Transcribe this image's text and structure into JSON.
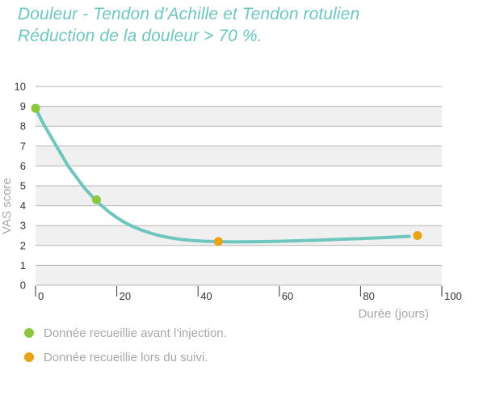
{
  "title_line1": "Douleur - Tendon d’Achille et Tendon rotulien",
  "title_line2": "Réduction de la douleur > 70 %.",
  "colors": {
    "title": "#6fc6bf",
    "curve": "#6fc6bf",
    "before": "#8dc63f",
    "followup": "#e8a317",
    "band": "#f0f0f0",
    "grid": "#b5b5b5",
    "text": "#333333",
    "label": "#a8a8a8"
  },
  "legend": [
    {
      "label": "Donnée recueillie avant l’injection.",
      "color_key": "before"
    },
    {
      "label": "Donnée recueillie lors du suivi.",
      "color_key": "followup"
    }
  ],
  "chart_data": {
    "type": "line",
    "xlabel": "Durée (jours)",
    "ylabel": "VAS score",
    "xlim": [
      0,
      100
    ],
    "ylim": [
      0,
      10
    ],
    "x_ticks": [
      0,
      20,
      40,
      60,
      80,
      100
    ],
    "y_ticks": [
      0,
      1,
      2,
      3,
      4,
      5,
      6,
      7,
      8,
      9,
      10
    ],
    "grid": true,
    "legend_position": "bottom-left",
    "series": [
      {
        "type": "line",
        "x": [
          0,
          2,
          4,
          6,
          8,
          10,
          12,
          14,
          16,
          18,
          20,
          22,
          24,
          26,
          28,
          30,
          32,
          34,
          36,
          38,
          40,
          42,
          44,
          46,
          48,
          50,
          55,
          60,
          65,
          70,
          75,
          80,
          85,
          90,
          92
        ],
        "y": [
          8.9,
          8.1,
          7.4,
          6.7,
          6.0,
          5.45,
          4.9,
          4.45,
          4.05,
          3.7,
          3.4,
          3.15,
          2.95,
          2.78,
          2.64,
          2.52,
          2.43,
          2.36,
          2.3,
          2.26,
          2.23,
          2.21,
          2.2,
          2.19,
          2.18,
          2.18,
          2.19,
          2.21,
          2.24,
          2.27,
          2.31,
          2.35,
          2.39,
          2.44,
          2.46
        ]
      },
      {
        "type": "scatter",
        "color_key": "before",
        "points": [
          {
            "x": 0,
            "y": 8.9
          },
          {
            "x": 15,
            "y": 4.3
          }
        ]
      },
      {
        "type": "scatter",
        "color_key": "followup",
        "points": [
          {
            "x": 45,
            "y": 2.2
          },
          {
            "x": 94,
            "y": 2.5
          }
        ]
      }
    ]
  }
}
